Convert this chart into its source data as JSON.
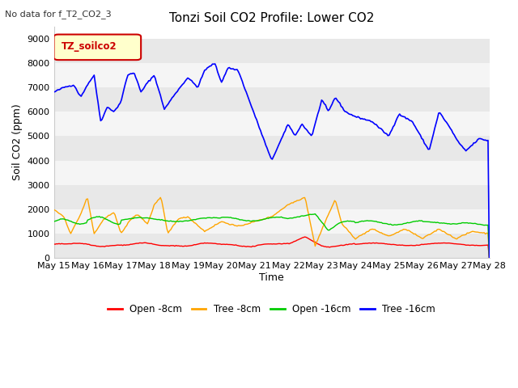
{
  "title": "Tonzi Soil CO2 Profile: Lower CO2",
  "subtitle": "No data for f_T2_CO2_3",
  "legend_label": "TZ_soilco2",
  "ylabel": "Soil CO2 (ppm)",
  "xlabel": "Time",
  "ylim": [
    0,
    9500
  ],
  "yticks": [
    0,
    1000,
    2000,
    3000,
    4000,
    5000,
    6000,
    7000,
    8000,
    9000
  ],
  "xtick_labels": [
    "May 15",
    "May 16",
    "May 17",
    "May 18",
    "May 19",
    "May 20",
    "May 21",
    "May 22",
    "May 23",
    "May 24",
    "May 25",
    "May 26",
    "May 27",
    "May 28"
  ],
  "fig_bg_color": "#ffffff",
  "plot_bg_color": "#ffffff",
  "band_colors": [
    "#e8e8e8",
    "#f5f5f5"
  ],
  "series": {
    "open_8cm": {
      "color": "#ff0000",
      "label": "Open -8cm"
    },
    "tree_8cm": {
      "color": "#ffa500",
      "label": "Tree -8cm"
    },
    "open_16cm": {
      "color": "#00cc00",
      "label": "Open -16cm"
    },
    "tree_16cm": {
      "color": "#0000ff",
      "label": "Tree -16cm"
    }
  }
}
